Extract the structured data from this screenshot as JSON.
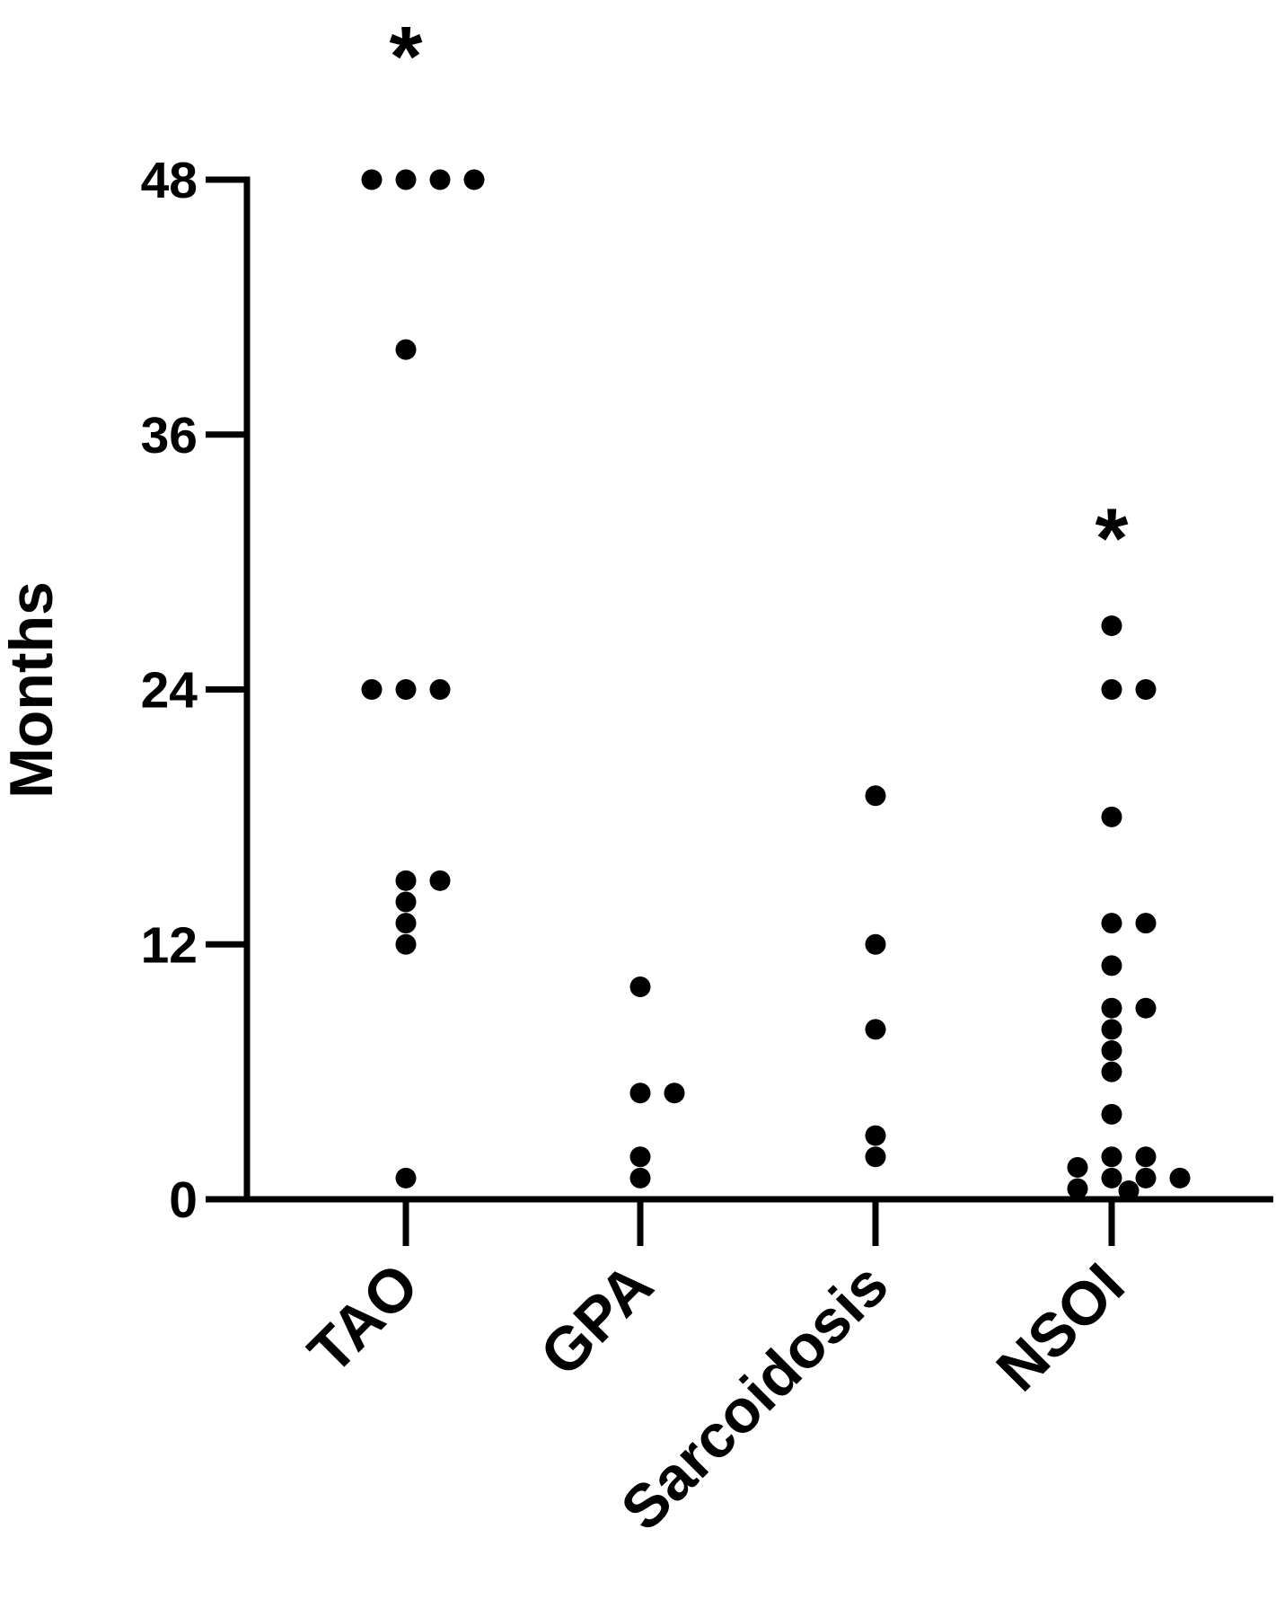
{
  "chart_data": {
    "type": "strip",
    "y_label": "Months",
    "categories": [
      "TAO",
      "GPA",
      "Sarcoidosis",
      "NSOI"
    ],
    "values": [
      [
        48,
        48,
        48,
        48,
        40,
        24,
        24,
        24,
        15,
        15,
        14,
        13,
        12,
        1
      ],
      [
        10,
        5,
        5,
        2,
        1
      ],
      [
        19,
        12,
        8,
        3,
        2
      ],
      [
        27,
        24,
        24,
        18,
        13,
        13,
        11,
        9,
        9,
        8,
        7,
        6,
        4,
        2,
        2,
        1.5,
        1,
        1,
        1,
        0.5,
        0.4
      ]
    ],
    "color": "#000000",
    "ylim": [
      0,
      48
    ],
    "yticks": [
      0,
      12,
      24,
      36,
      48
    ],
    "annotations": [
      {
        "text": "*",
        "category": "TAO"
      },
      {
        "text": "*",
        "category": "NSOI"
      }
    ]
  }
}
